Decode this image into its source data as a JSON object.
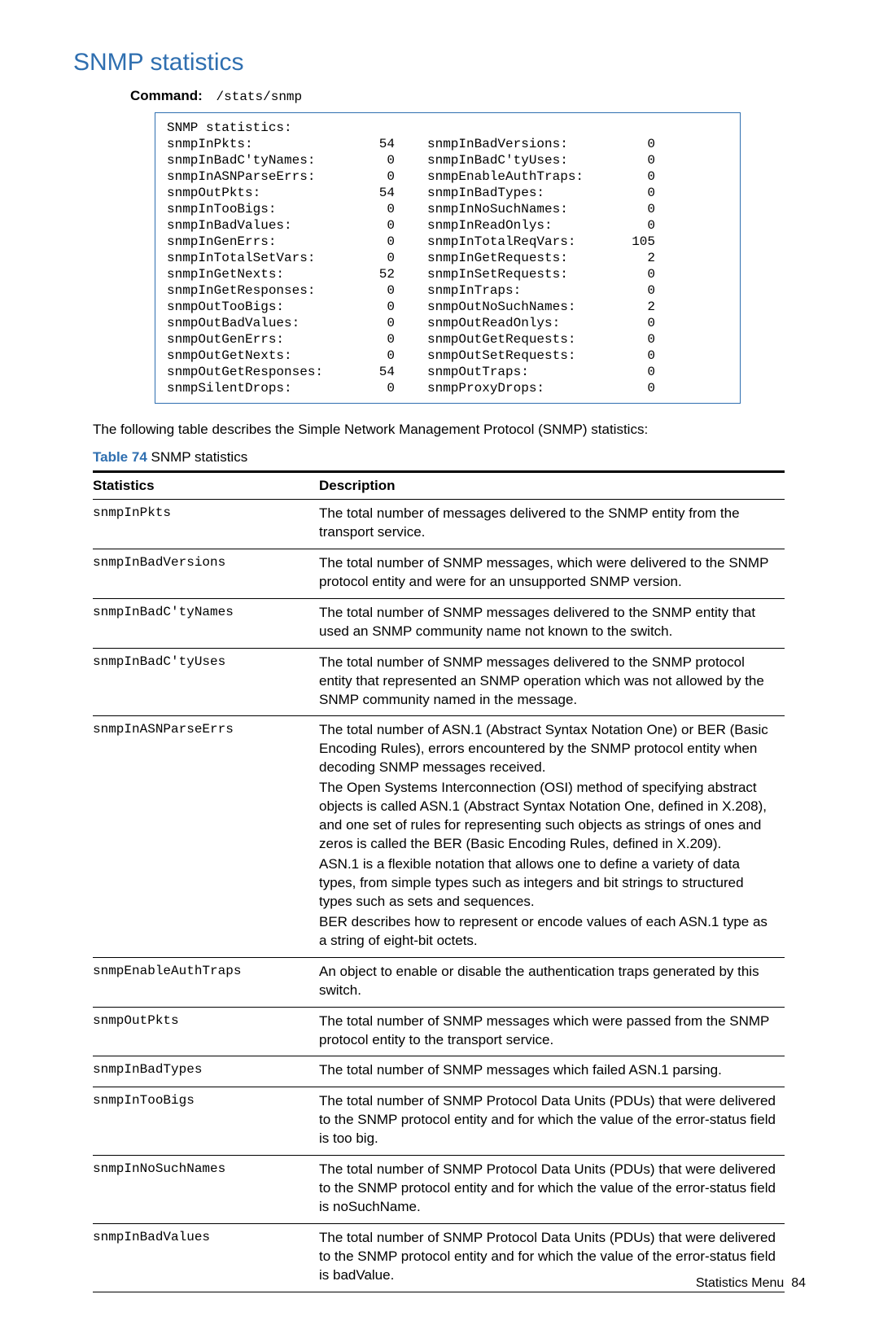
{
  "title": "SNMP statistics",
  "command": {
    "label": "Command:",
    "path": "/stats/snmp"
  },
  "statsBox": {
    "heading": "SNMP statistics:",
    "rows": [
      {
        "l1": "snmpInPkts:",
        "v1": "54",
        "l2": "snmpInBadVersions:",
        "v2": "0"
      },
      {
        "l1": "snmpInBadC'tyNames:",
        "v1": "0",
        "l2": "snmpInBadC'tyUses:",
        "v2": "0"
      },
      {
        "l1": "snmpInASNParseErrs:",
        "v1": "0",
        "l2": "snmpEnableAuthTraps:",
        "v2": "0"
      },
      {
        "l1": "snmpOutPkts:",
        "v1": "54",
        "l2": "snmpInBadTypes:",
        "v2": "0"
      },
      {
        "l1": "snmpInTooBigs:",
        "v1": "0",
        "l2": "snmpInNoSuchNames:",
        "v2": "0"
      },
      {
        "l1": "snmpInBadValues:",
        "v1": "0",
        "l2": "snmpInReadOnlys:",
        "v2": "0"
      },
      {
        "l1": "snmpInGenErrs:",
        "v1": "0",
        "l2": "snmpInTotalReqVars:",
        "v2": "105"
      },
      {
        "l1": "snmpInTotalSetVars:",
        "v1": "0",
        "l2": "snmpInGetRequests:",
        "v2": "2"
      },
      {
        "l1": "snmpInGetNexts:",
        "v1": "52",
        "l2": "snmpInSetRequests:",
        "v2": "0"
      },
      {
        "l1": "snmpInGetResponses:",
        "v1": "0",
        "l2": "snmpInTraps:",
        "v2": "0"
      },
      {
        "l1": "snmpOutTooBigs:",
        "v1": "0",
        "l2": "snmpOutNoSuchNames:",
        "v2": "2"
      },
      {
        "l1": "snmpOutBadValues:",
        "v1": "0",
        "l2": "snmpOutReadOnlys:",
        "v2": "0"
      },
      {
        "l1": "snmpOutGenErrs:",
        "v1": "0",
        "l2": "snmpOutGetRequests:",
        "v2": "0"
      },
      {
        "l1": "snmpOutGetNexts:",
        "v1": "0",
        "l2": "snmpOutSetRequests:",
        "v2": "0"
      },
      {
        "l1": "snmpOutGetResponses:",
        "v1": "54",
        "l2": "snmpOutTraps:",
        "v2": "0"
      },
      {
        "l1": "snmpSilentDrops:",
        "v1": "0",
        "l2": "snmpProxyDrops:",
        "v2": "0"
      }
    ]
  },
  "intro": "The following table describes the Simple Network Management Protocol (SNMP) statistics:",
  "tableCaption": {
    "label": "Table 74",
    "text": " SNMP statistics"
  },
  "descTable": {
    "headers": {
      "stat": "Statistics",
      "desc": "Description"
    },
    "rows": [
      {
        "stat": "snmpInPkts",
        "paras": [
          "The total number of messages delivered to the SNMP entity from the transport service."
        ]
      },
      {
        "stat": "snmpInBadVersions",
        "paras": [
          "The total number of SNMP messages, which were delivered to the SNMP protocol entity and were for an unsupported SNMP version."
        ]
      },
      {
        "stat": "snmpInBadC'tyNames",
        "paras": [
          "The total number of SNMP messages delivered to the SNMP entity that used an SNMP community name not known to the switch."
        ]
      },
      {
        "stat": "snmpInBadC'tyUses",
        "paras": [
          "The total number of SNMP messages delivered to the SNMP protocol entity that represented an SNMP operation which was not allowed by the SNMP community named in the message."
        ]
      },
      {
        "stat": "snmpInASNParseErrs",
        "paras": [
          "The total number of ASN.1 (Abstract Syntax Notation One) or BER (Basic Encoding Rules), errors encountered by the SNMP protocol entity when decoding SNMP messages received.",
          "The Open Systems Interconnection (OSI) method of specifying abstract objects is called ASN.1 (Abstract Syntax Notation One, defined in X.208), and one set of rules for representing such objects as strings of ones and zeros is called the BER (Basic Encoding Rules, defined in X.209).",
          "ASN.1 is a flexible notation that allows one to define a variety of data types, from simple types such as integers and bit strings to structured types such as sets and sequences.",
          "BER describes how to represent or encode values of each ASN.1 type as a string of eight-bit octets."
        ]
      },
      {
        "stat": "snmpEnableAuthTraps",
        "paras": [
          "An object to enable or disable the authentication traps generated by this switch."
        ]
      },
      {
        "stat": "snmpOutPkts",
        "paras": [
          "The total number of SNMP messages which were passed from the SNMP protocol entity to the transport service."
        ]
      },
      {
        "stat": "snmpInBadTypes",
        "paras": [
          "The total number of SNMP messages which failed ASN.1 parsing."
        ]
      },
      {
        "stat": "snmpInTooBigs",
        "paras": [
          "The total number of SNMP Protocol Data Units (PDUs) that were delivered to the SNMP protocol entity and for which the value of the error-status field is too big."
        ]
      },
      {
        "stat": "snmpInNoSuchNames",
        "paras": [
          "The total number of SNMP Protocol Data Units (PDUs) that were delivered to the SNMP protocol entity and for which the value of the error-status field is noSuchName."
        ]
      },
      {
        "stat": "snmpInBadValues",
        "paras": [
          "The total number of SNMP Protocol Data Units (PDUs) that were delivered to the SNMP protocol entity and for which the value of the error-status field is badValue."
        ]
      }
    ]
  },
  "footer": {
    "section": "Statistics Menu",
    "page": "84"
  },
  "colors": {
    "accent": "#2f6fb0",
    "border": "#2f6fb0",
    "text": "#000000",
    "background": "#ffffff"
  }
}
